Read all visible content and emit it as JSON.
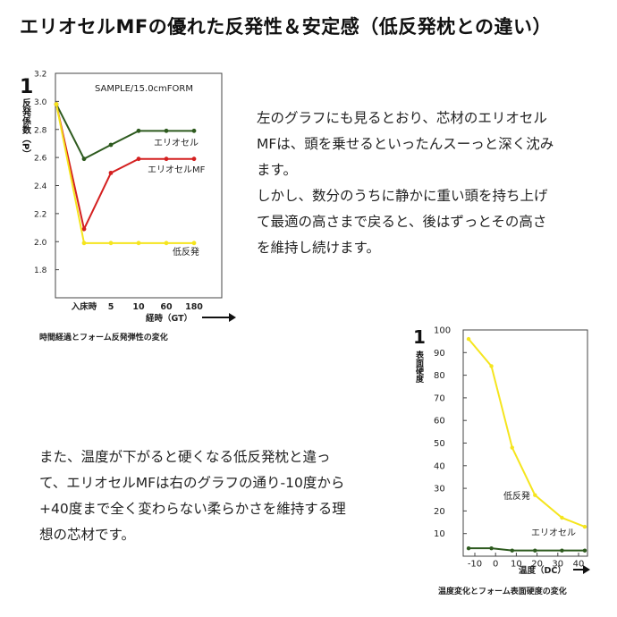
{
  "header": {
    "title": "エリオセルMFの優れた反発性＆安定感（低反発枕との違い）"
  },
  "paragraphs": {
    "p1": [
      "左のグラフにも見るとおり、芯材のエリオセル",
      "MFは、頭を乗せるといったんスーっと深く沈み",
      "ます。",
      "しかし、数分のうちに静かに重い頭を持ち上げ",
      "て最適の高さまで戻ると、後はずっとその高さ",
      "を維持し続けます。"
    ],
    "p2": [
      "また、温度が下がると硬くなる低反発枕と違っ",
      "て、エリオセルMFは右のグラフの通り-10度から",
      "+40度まで全く変わらない柔らかさを維持する理",
      "想の芯材です。"
    ]
  },
  "chart_data": [
    {
      "type": "line",
      "subtitle": "SAMPLE/15.0cmFORM",
      "caption": "時間経過とフォーム反発弾性の変化",
      "ylabel": "反発係数（P）",
      "y_marker": "1",
      "xlabel": "経時（GT）",
      "categories": [
        "",
        "入床時",
        "5",
        "10",
        "60",
        "180"
      ],
      "yticks": [
        "3.2",
        "3.0",
        "2.8",
        "2.6",
        "2.4",
        "2.2",
        "2.0",
        "1.8"
      ],
      "ylim": [
        1.6,
        3.2
      ],
      "series": [
        {
          "name": "エリオセル",
          "color": "#2d5a1e",
          "values": [
            2.98,
            2.59,
            2.69,
            2.79,
            2.79,
            2.79
          ]
        },
        {
          "name": "エリオセルMF",
          "color": "#d42020",
          "values": [
            2.98,
            2.09,
            2.49,
            2.59,
            2.59,
            2.59
          ]
        },
        {
          "name": "低反発",
          "color": "#f5e51e",
          "values": [
            2.98,
            1.99,
            1.99,
            1.99,
            1.99,
            1.99
          ]
        }
      ]
    },
    {
      "type": "line",
      "caption": "温度変化とフォーム表面硬度の変化",
      "ylabel": "表面硬度",
      "y_marker": "1",
      "xlabel": "温度（DC）",
      "x": [
        -10,
        0,
        10,
        20,
        30,
        40
      ],
      "xticks": [
        "-10",
        "0",
        "10",
        "20",
        "30",
        "40"
      ],
      "yticks": [
        "100",
        "90",
        "80",
        "70",
        "60",
        "50",
        "40",
        "30",
        "20",
        "10"
      ],
      "ylim": [
        0,
        100
      ],
      "series": [
        {
          "name": "低反発",
          "color": "#f5e51e",
          "x": [
            -13,
            -2,
            8,
            19,
            32,
            43
          ],
          "values": [
            96,
            84,
            48,
            27,
            17,
            13
          ]
        },
        {
          "name": "エリオセル",
          "color": "#2d5a1e",
          "x": [
            -13,
            -2,
            8,
            19,
            32,
            43
          ],
          "values": [
            3.5,
            3.5,
            2.5,
            2.5,
            2.5,
            2.5
          ]
        }
      ]
    }
  ]
}
